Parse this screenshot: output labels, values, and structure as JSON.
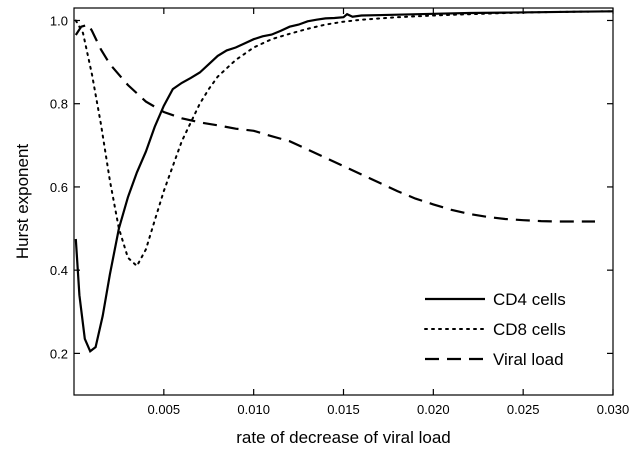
{
  "chart_data": {
    "type": "line",
    "title": "",
    "xlabel": "rate of decrease of viral load",
    "ylabel": "Hurst exponent",
    "xlim": [
      0.0,
      0.03
    ],
    "ylim": [
      0.1,
      1.03
    ],
    "x_ticks": [
      0.005,
      0.01,
      0.015,
      0.02,
      0.025,
      0.03
    ],
    "x_tick_labels": [
      "0.005",
      "0.010",
      "0.015",
      "0.020",
      "0.025",
      "0.030"
    ],
    "y_ticks": [
      0.2,
      0.4,
      0.6,
      0.8,
      1.0
    ],
    "y_tick_labels": [
      "0.2",
      "0.4",
      "0.6",
      "0.8",
      "1.0"
    ],
    "grid": false,
    "legend_position": "bottom-right",
    "series": [
      {
        "name": "CD4 cells",
        "line_style": "solid",
        "color": "#000000",
        "points": [
          [
            0.0001,
            0.475
          ],
          [
            0.0003,
            0.34
          ],
          [
            0.0006,
            0.235
          ],
          [
            0.0009,
            0.205
          ],
          [
            0.0012,
            0.215
          ],
          [
            0.0016,
            0.29
          ],
          [
            0.002,
            0.39
          ],
          [
            0.0025,
            0.5
          ],
          [
            0.003,
            0.575
          ],
          [
            0.0035,
            0.635
          ],
          [
            0.004,
            0.685
          ],
          [
            0.0045,
            0.745
          ],
          [
            0.005,
            0.795
          ],
          [
            0.0055,
            0.835
          ],
          [
            0.006,
            0.85
          ],
          [
            0.0065,
            0.862
          ],
          [
            0.007,
            0.875
          ],
          [
            0.0075,
            0.895
          ],
          [
            0.008,
            0.915
          ],
          [
            0.0085,
            0.928
          ],
          [
            0.009,
            0.935
          ],
          [
            0.0095,
            0.945
          ],
          [
            0.01,
            0.955
          ],
          [
            0.0105,
            0.962
          ],
          [
            0.011,
            0.966
          ],
          [
            0.0115,
            0.975
          ],
          [
            0.012,
            0.985
          ],
          [
            0.0125,
            0.99
          ],
          [
            0.013,
            0.998
          ],
          [
            0.0135,
            1.002
          ],
          [
            0.014,
            1.005
          ],
          [
            0.0145,
            1.006
          ],
          [
            0.015,
            1.008
          ],
          [
            0.0152,
            1.015
          ],
          [
            0.0155,
            1.009
          ],
          [
            0.016,
            1.012
          ],
          [
            0.018,
            1.014
          ],
          [
            0.02,
            1.016
          ],
          [
            0.022,
            1.018
          ],
          [
            0.024,
            1.019
          ],
          [
            0.026,
            1.02
          ],
          [
            0.028,
            1.021
          ],
          [
            0.03,
            1.022
          ]
        ]
      },
      {
        "name": "CD8 cells",
        "line_style": "dotted",
        "color": "#000000",
        "points": [
          [
            0.0001,
            1.0
          ],
          [
            0.0005,
            0.97
          ],
          [
            0.001,
            0.87
          ],
          [
            0.0015,
            0.75
          ],
          [
            0.002,
            0.615
          ],
          [
            0.0025,
            0.5
          ],
          [
            0.003,
            0.43
          ],
          [
            0.0035,
            0.41
          ],
          [
            0.004,
            0.45
          ],
          [
            0.0045,
            0.52
          ],
          [
            0.005,
            0.59
          ],
          [
            0.0055,
            0.65
          ],
          [
            0.006,
            0.71
          ],
          [
            0.0065,
            0.755
          ],
          [
            0.007,
            0.8
          ],
          [
            0.0075,
            0.835
          ],
          [
            0.008,
            0.865
          ],
          [
            0.0085,
            0.885
          ],
          [
            0.009,
            0.905
          ],
          [
            0.0095,
            0.92
          ],
          [
            0.01,
            0.935
          ],
          [
            0.011,
            0.955
          ],
          [
            0.012,
            0.968
          ],
          [
            0.013,
            0.98
          ],
          [
            0.014,
            0.99
          ],
          [
            0.015,
            0.997
          ],
          [
            0.016,
            1.002
          ],
          [
            0.018,
            1.008
          ],
          [
            0.02,
            1.012
          ],
          [
            0.022,
            1.015
          ],
          [
            0.024,
            1.018
          ],
          [
            0.026,
            1.02
          ],
          [
            0.028,
            1.021
          ],
          [
            0.03,
            1.022
          ]
        ]
      },
      {
        "name": "Viral load",
        "line_style": "dashed",
        "color": "#000000",
        "points": [
          [
            0.0001,
            0.965
          ],
          [
            0.0004,
            0.985
          ],
          [
            0.0008,
            0.99
          ],
          [
            0.001,
            0.975
          ],
          [
            0.0015,
            0.93
          ],
          [
            0.002,
            0.895
          ],
          [
            0.003,
            0.845
          ],
          [
            0.004,
            0.805
          ],
          [
            0.005,
            0.78
          ],
          [
            0.006,
            0.765
          ],
          [
            0.007,
            0.755
          ],
          [
            0.008,
            0.748
          ],
          [
            0.009,
            0.74
          ],
          [
            0.01,
            0.735
          ],
          [
            0.011,
            0.722
          ],
          [
            0.012,
            0.71
          ],
          [
            0.013,
            0.69
          ],
          [
            0.014,
            0.67
          ],
          [
            0.015,
            0.65
          ],
          [
            0.016,
            0.63
          ],
          [
            0.017,
            0.61
          ],
          [
            0.018,
            0.59
          ],
          [
            0.019,
            0.572
          ],
          [
            0.02,
            0.558
          ],
          [
            0.021,
            0.545
          ],
          [
            0.022,
            0.535
          ],
          [
            0.023,
            0.528
          ],
          [
            0.024,
            0.523
          ],
          [
            0.025,
            0.52
          ],
          [
            0.026,
            0.518
          ],
          [
            0.027,
            0.517
          ],
          [
            0.028,
            0.517
          ],
          [
            0.029,
            0.517
          ]
        ]
      }
    ]
  }
}
